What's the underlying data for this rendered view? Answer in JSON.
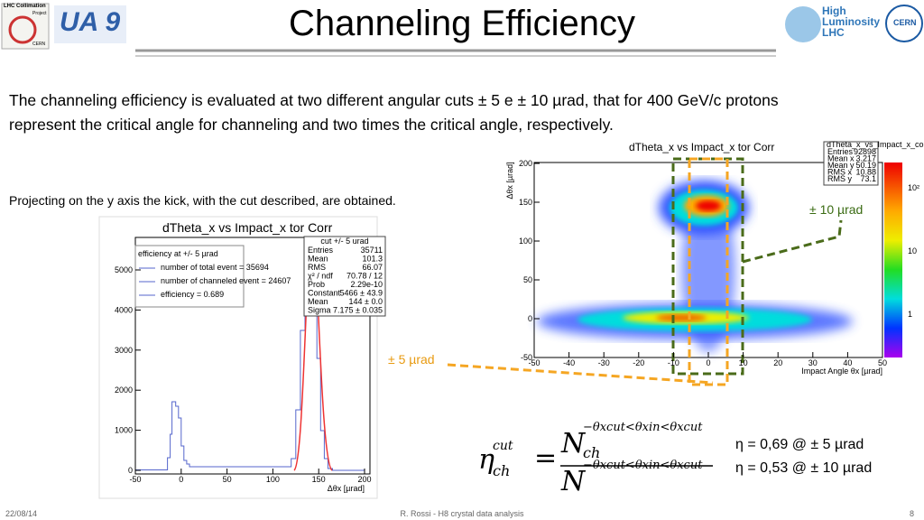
{
  "header": {
    "title": "Channeling Efficiency",
    "logo_left_1": "LHC Collimation",
    "logo_left_2": "Project",
    "logo_left_3": "CERN",
    "logo_ua9": "UA 9",
    "logo_hl_1": "High",
    "logo_hl_2": "Luminosity",
    "logo_hl_3": "LHC",
    "logo_cern": "CERN"
  },
  "body": {
    "paragraph": "The channeling efficiency is evaluated at two different angular cuts ± 5 e ± 10 µrad, that for 400 GeV/c protons represent the critical angle for channeling and two times the critical angle, respectively.",
    "projecting": "Projecting on the y axis the kick, with the cut described, are obtained."
  },
  "left_plot": {
    "title": "dTheta_x vs Impact_x tor Corr",
    "stats_title": "cut +/- 5 urad",
    "stats": [
      [
        "Entries",
        "35711"
      ],
      [
        "Mean",
        "101.3"
      ],
      [
        "RMS",
        "66.07"
      ],
      [
        "χ² / ndf",
        "70.78 / 12"
      ],
      [
        "Prob",
        "2.29e-10"
      ],
      [
        "Constant",
        "5466 ± 43.9"
      ],
      [
        "Mean",
        "144 ± 0.0"
      ],
      [
        "Sigma",
        "7.175 ± 0.035"
      ]
    ],
    "legend": [
      "efficiency at +/- 5 µrad",
      "number of total event = 35694",
      "number of channeled event = 24607",
      "efficiency = 0.689"
    ],
    "yticks": [
      0,
      1000,
      2000,
      3000,
      4000,
      5000
    ],
    "xticks": [
      -50,
      0,
      50,
      100,
      150,
      200
    ],
    "xlabel": "Δθx [µrad]"
  },
  "right_plot": {
    "title": "dTheta_x vs Impact_x tor Corr",
    "stats_title": "dTheta_x_vs_Impact_x_corr",
    "stats": [
      [
        "Entries",
        "92898"
      ],
      [
        "Mean x",
        "3.217"
      ],
      [
        "Mean y",
        "50.19"
      ],
      [
        "RMS x",
        "10.88"
      ],
      [
        "RMS y",
        "73.1"
      ]
    ],
    "yticks": [
      -50,
      0,
      50,
      100,
      150,
      200
    ],
    "xticks": [
      -50,
      -40,
      -30,
      -20,
      -10,
      0,
      10,
      20,
      30,
      40,
      50
    ],
    "ylabel": "Δθx [µrad]",
    "xlabel": "Impact Angle θx [µrad]",
    "scale": [
      "10²",
      "10",
      "1"
    ]
  },
  "annotations": {
    "cut10": "± 10 µrad",
    "cut5": "± 5 µrad"
  },
  "formula": {
    "eta": "η",
    "sub": "ch",
    "sup": "cut",
    "eq": "=",
    "n": "N",
    "cond": "−θxcut<θxin<θxcut"
  },
  "results": [
    "η = 0,69 @ ± 5 µrad",
    "η = 0,53 @ ± 10 µrad"
  ],
  "footer": {
    "date": "22/08/14",
    "center": "R. Rossi - H8 crystal data analysis",
    "page": "8"
  }
}
